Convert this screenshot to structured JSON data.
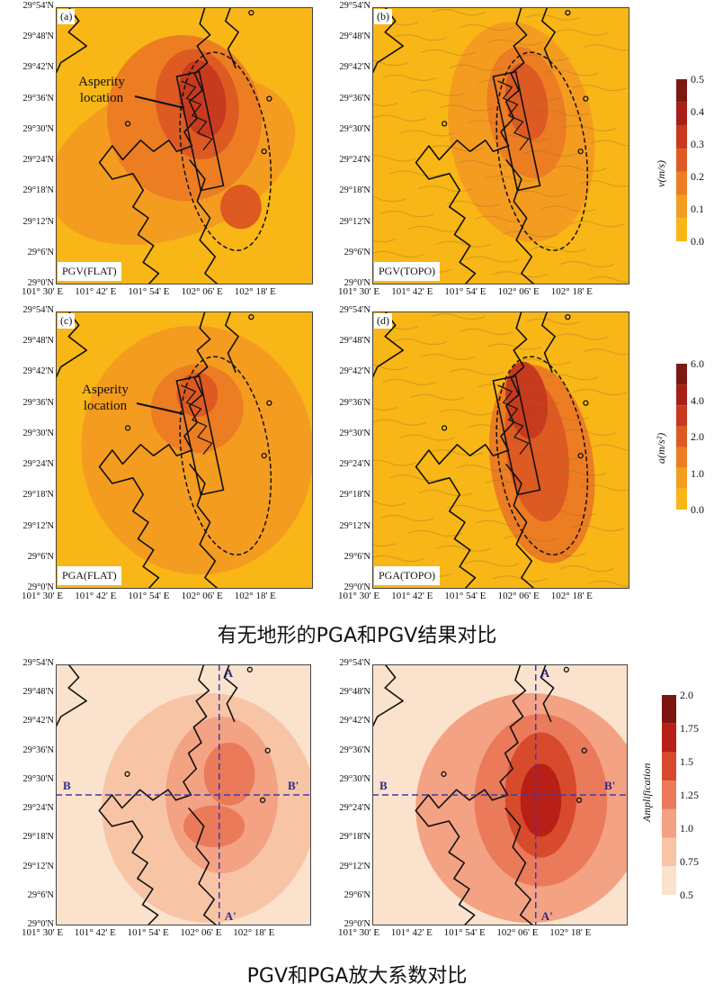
{
  "y_ticks": [
    "29°54'N",
    "29°48'N",
    "29°42'N",
    "29°36'N",
    "29°30'N",
    "29°24'N",
    "29°18'N",
    "29°12'N",
    "29°6'N",
    "29°0'N"
  ],
  "x_ticks": [
    "101° 30' E",
    "101° 42' E",
    "101° 54' E",
    "102° 06' E",
    "102° 18' E"
  ],
  "panels": {
    "a": {
      "tag": "(a)",
      "name": "PGV(FLAT)"
    },
    "b": {
      "tag": "(b)",
      "name": "PGV(TOPO)"
    },
    "c": {
      "tag": "(c)",
      "name": "PGA(FLAT)"
    },
    "d": {
      "tag": "(d)",
      "name": "PGA(TOPO)"
    }
  },
  "annotation_a": [
    "Asperity",
    "location"
  ],
  "annotation_c": [
    "Asperity",
    "location"
  ],
  "colorbar_v": {
    "title": "v(m/s)",
    "ticks": [
      "0.5",
      "0.4",
      "0.3",
      "0.2",
      "0.1",
      "0.0"
    ],
    "colors": [
      "#7a1a12",
      "#a81f17",
      "#c83a1e",
      "#dd5a22",
      "#ec7d22",
      "#f49c20",
      "#f8b617"
    ]
  },
  "colorbar_a": {
    "title": "a(m/s²)",
    "ticks": [
      "6.0",
      "4.0",
      "2.0",
      "1.0",
      "0.0"
    ],
    "colors": [
      "#7a1a12",
      "#a81f17",
      "#c83a1e",
      "#dd5a22",
      "#ec7d22",
      "#f49c20",
      "#f8b617"
    ]
  },
  "colorbar_amp": {
    "title": "Amplification",
    "ticks": [
      "2.0",
      "1.75",
      "1.5",
      "1.25",
      "1.0",
      "0.75",
      "0.5"
    ],
    "colors": [
      "#7d1410",
      "#b81f16",
      "#d84a2c",
      "#ea7a5a",
      "#f3a283",
      "#f7c5a6",
      "#fbe2cc"
    ]
  },
  "section_labels": {
    "A": "A",
    "A2": "A'",
    "B": "B",
    "B2": "B'"
  },
  "caption1": "有无地形的PGA和PGV结果对比",
  "caption2": "PGV和PGA放大系数对比",
  "chart_data": [
    {
      "type": "heatmap",
      "panel": "(a)",
      "title": "PGV(FLAT)",
      "quantity": "v(m/s)",
      "range": [
        0.0,
        0.5
      ],
      "xlabels": [
        "101° 30' E",
        "101° 42' E",
        "101° 54' E",
        "102° 06' E",
        "102° 18' E"
      ],
      "ylabels": [
        "29°0'N",
        "29°6'N",
        "29°12'N",
        "29°18'N",
        "29°24'N",
        "29°30'N",
        "29°36'N",
        "29°42'N",
        "29°48'N",
        "29°54'N"
      ]
    },
    {
      "type": "heatmap",
      "panel": "(b)",
      "title": "PGV(TOPO)",
      "quantity": "v(m/s)",
      "range": [
        0.0,
        0.5
      ]
    },
    {
      "type": "heatmap",
      "panel": "(c)",
      "title": "PGA(FLAT)",
      "quantity": "a(m/s²)",
      "range": [
        0.0,
        6.0
      ]
    },
    {
      "type": "heatmap",
      "panel": "(d)",
      "title": "PGA(TOPO)",
      "quantity": "a(m/s²)",
      "range": [
        0.0,
        6.0
      ]
    },
    {
      "type": "heatmap",
      "panel": "bottom-left",
      "quantity": "Amplification",
      "range": [
        0.5,
        2.0
      ]
    },
    {
      "type": "heatmap",
      "panel": "bottom-right",
      "quantity": "Amplification",
      "range": [
        0.5,
        2.0
      ]
    }
  ]
}
